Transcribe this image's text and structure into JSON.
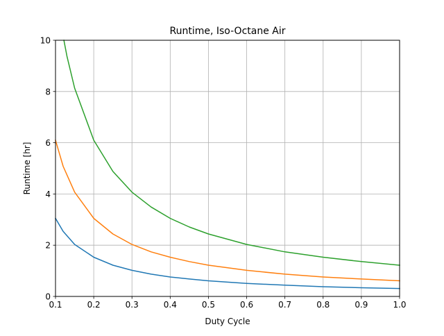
{
  "chart_data": {
    "type": "line",
    "title": "Runtime, Iso-Octane Air",
    "xlabel": "Duty Cycle",
    "ylabel": "Runtime [hr]",
    "xlim": [
      0.1,
      1.0
    ],
    "ylim": [
      0,
      10
    ],
    "xticks": [
      "0.1",
      "0.2",
      "0.3",
      "0.4",
      "0.5",
      "0.6",
      "0.7",
      "0.8",
      "0.9",
      "1.0"
    ],
    "yticks": [
      "0",
      "2",
      "4",
      "6",
      "8",
      "10"
    ],
    "grid": true,
    "legend": "none",
    "series": [
      {
        "color": "#1f77b4",
        "x": [
          0.1,
          0.12,
          0.15,
          0.2,
          0.25,
          0.3,
          0.35,
          0.4,
          0.45,
          0.5,
          0.6,
          0.7,
          0.8,
          0.9,
          1.0
        ],
        "y": [
          3.05,
          2.54,
          2.03,
          1.53,
          1.22,
          1.02,
          0.87,
          0.76,
          0.68,
          0.61,
          0.51,
          0.44,
          0.38,
          0.34,
          0.31
        ]
      },
      {
        "color": "#ff7f0e",
        "x": [
          0.1,
          0.12,
          0.15,
          0.2,
          0.25,
          0.3,
          0.35,
          0.4,
          0.45,
          0.5,
          0.6,
          0.7,
          0.8,
          0.9,
          1.0
        ],
        "y": [
          6.1,
          5.08,
          4.07,
          3.05,
          2.44,
          2.03,
          1.74,
          1.53,
          1.36,
          1.22,
          1.02,
          0.87,
          0.76,
          0.68,
          0.61
        ]
      },
      {
        "color": "#2ca02c",
        "x": [
          0.122,
          0.13,
          0.15,
          0.2,
          0.25,
          0.3,
          0.35,
          0.4,
          0.45,
          0.5,
          0.6,
          0.7,
          0.8,
          0.9,
          1.0
        ],
        "y": [
          10.0,
          9.38,
          8.13,
          6.1,
          4.88,
          4.07,
          3.49,
          3.05,
          2.71,
          2.44,
          2.03,
          1.74,
          1.53,
          1.36,
          1.22
        ]
      }
    ]
  }
}
